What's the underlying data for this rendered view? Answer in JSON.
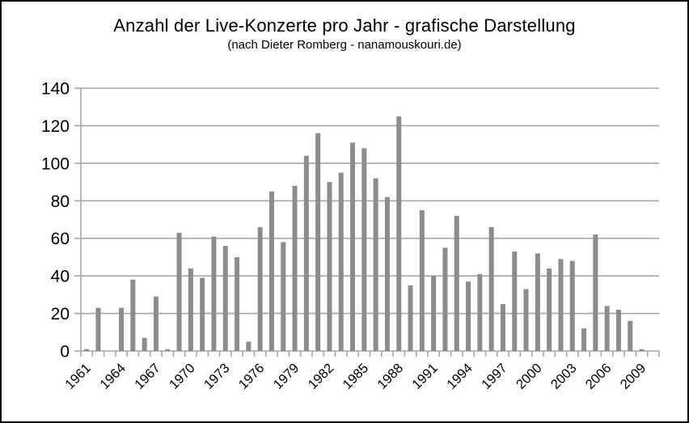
{
  "title": "Anzahl der Live-Konzerte pro Jahr - grafische Darstellung",
  "subtitle": "(nach Dieter Romberg - nanamouskouri.de)",
  "chart_data": {
    "type": "bar",
    "title": "Anzahl der Live-Konzerte pro Jahr - grafische Darstellung",
    "subtitle": "(nach Dieter Romberg - nanamouskouri.de)",
    "categories": [
      "1961",
      "1962",
      "1963",
      "1964",
      "1965",
      "1966",
      "1967",
      "1968",
      "1969",
      "1970",
      "1971",
      "1972",
      "1973",
      "1974",
      "1975",
      "1976",
      "1977",
      "1978",
      "1979",
      "1980",
      "1981",
      "1982",
      "1983",
      "1984",
      "1985",
      "1986",
      "1987",
      "1988",
      "1989",
      "1990",
      "1991",
      "1992",
      "1993",
      "1994",
      "1995",
      "1996",
      "1997",
      "1998",
      "1999",
      "2000",
      "2001",
      "2002",
      "2003",
      "2004",
      "2005",
      "2006",
      "2007",
      "2008",
      "2009",
      "2010"
    ],
    "values": [
      1,
      23,
      0,
      23,
      38,
      7,
      29,
      1,
      63,
      44,
      39,
      61,
      56,
      50,
      5,
      66,
      85,
      58,
      88,
      104,
      116,
      90,
      95,
      111,
      108,
      92,
      82,
      125,
      35,
      75,
      40,
      55,
      72,
      37,
      41,
      66,
      25,
      53,
      33,
      52,
      44,
      49,
      48,
      12,
      62,
      24,
      22,
      16,
      1,
      0
    ],
    "xlabel": "",
    "ylabel": "",
    "ylim": [
      0,
      140
    ],
    "y_ticks": [
      0,
      20,
      40,
      60,
      80,
      100,
      120,
      140
    ],
    "x_label_start_index": 0,
    "x_label_step": 3,
    "x_labels_shown": [
      "1961",
      "1964",
      "1967",
      "1970",
      "1973",
      "1976",
      "1979",
      "1982",
      "1985",
      "1988",
      "1991",
      "1994",
      "1997",
      "2000",
      "2003",
      "2006",
      "2009"
    ],
    "grid": "horizontal",
    "legend_position": "none",
    "bar_color": "#8c8c8c",
    "grid_color": "#a6a6a6",
    "axis_color": "#a6a6a6",
    "text_color": "#000000"
  }
}
